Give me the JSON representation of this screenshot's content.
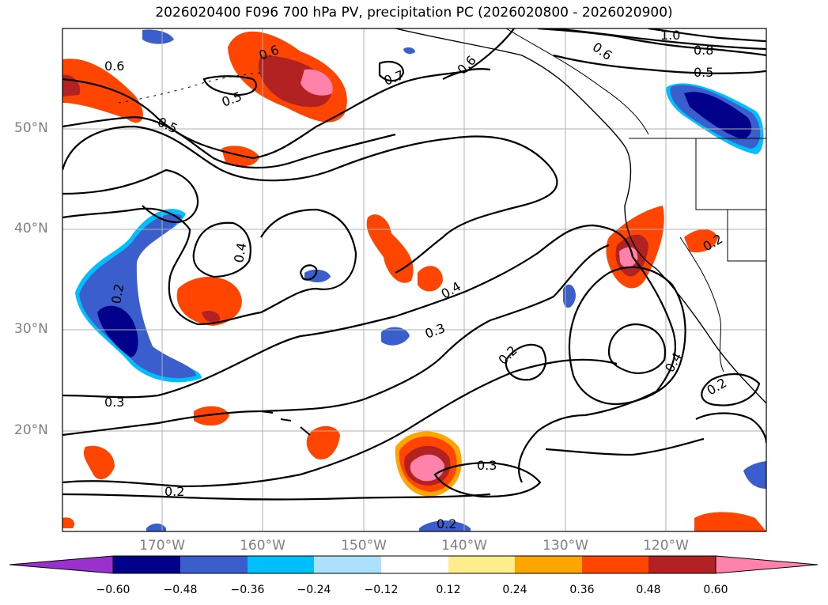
{
  "title": "2026020400 F096 700 hPa PV, precipitation PC (2026020800 - 2026020900)",
  "lat_labels": [
    "50°N",
    "40°N",
    "30°N",
    "20°N"
  ],
  "lon_labels": [
    "170°W",
    "160°W",
    "150°W",
    "140°W",
    "130°W",
    "120°W"
  ],
  "colorbar": {
    "ticks": [
      "−0.60",
      "−0.48",
      "−0.36",
      "−0.24",
      "−0.12",
      "0.12",
      "0.24",
      "0.36",
      "0.48",
      "0.60"
    ],
    "colors": [
      "#9932CC",
      "#00008B",
      "#3A5FCD",
      "#00BFFF",
      "#ADE0FA",
      "#FFFFFF",
      "#FFEC8B",
      "#FFA500",
      "#FF4500",
      "#B22222",
      "#FF82AB"
    ]
  },
  "contour_labels": [
    "0.6",
    "0.6",
    "0.5",
    "0.5",
    "0.7",
    "0.6",
    "0.6",
    "1.0",
    "0.8",
    "0.5",
    "0.4",
    "0.2",
    "0.4",
    "0.3",
    "0.2",
    "0.3",
    "0.2",
    "0.3",
    "0.4",
    "0.2",
    "0.2",
    "0.2"
  ]
}
